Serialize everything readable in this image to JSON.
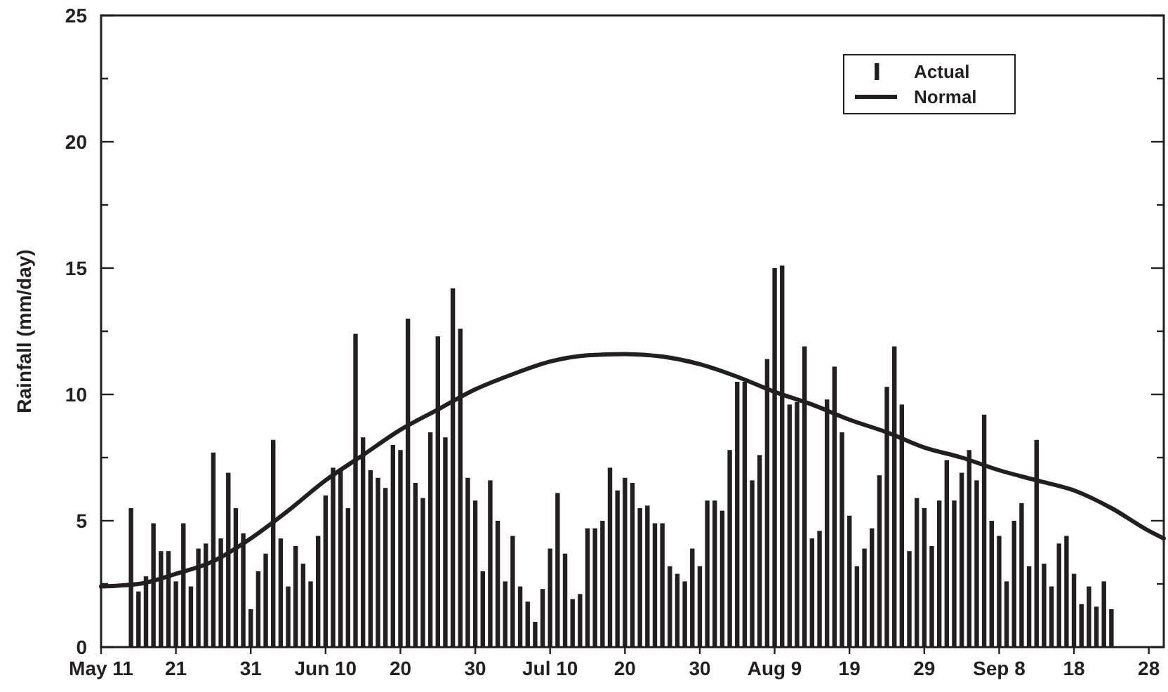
{
  "chart_data": {
    "type": "bar",
    "ylabel": "Rainfall (mm/day)",
    "x": [
      "--05-15",
      "--05-16",
      "--05-17",
      "--05-18",
      "--05-19",
      "--05-20",
      "--05-21",
      "--05-22",
      "--05-23",
      "--05-24",
      "--05-25",
      "--05-26",
      "--05-27",
      "--05-28",
      "--05-29",
      "--05-30",
      "--05-31",
      "--06-01",
      "--06-02",
      "--06-03",
      "--06-04",
      "--06-05",
      "--06-06",
      "--06-07",
      "--06-08",
      "--06-09",
      "--06-10",
      "--06-11",
      "--06-12",
      "--06-13",
      "--06-14",
      "--06-15",
      "--06-16",
      "--06-17",
      "--06-18",
      "--06-19",
      "--06-20",
      "--06-21",
      "--06-22",
      "--06-23",
      "--06-24",
      "--06-25",
      "--06-26",
      "--06-27",
      "--06-28",
      "--06-29",
      "--06-30",
      "--07-01",
      "--07-02",
      "--07-03",
      "--07-04",
      "--07-05",
      "--07-06",
      "--07-07",
      "--07-08",
      "--07-09",
      "--07-10",
      "--07-11",
      "--07-12",
      "--07-13",
      "--07-14",
      "--07-15",
      "--07-16",
      "--07-17",
      "--07-18",
      "--07-19",
      "--07-20",
      "--07-21",
      "--07-22",
      "--07-23",
      "--07-24",
      "--07-25",
      "--07-26",
      "--07-27",
      "--07-28",
      "--07-29",
      "--07-30",
      "--07-31",
      "--08-01",
      "--08-02",
      "--08-03",
      "--08-04",
      "--08-05",
      "--08-06",
      "--08-07",
      "--08-08",
      "--08-09",
      "--08-10",
      "--08-11",
      "--08-12",
      "--08-13",
      "--08-14",
      "--08-15",
      "--08-16",
      "--08-17",
      "--08-18",
      "--08-19",
      "--08-20",
      "--08-21",
      "--08-22",
      "--08-23",
      "--08-24",
      "--08-25",
      "--08-26",
      "--08-27",
      "--08-28",
      "--08-29",
      "--08-30",
      "--08-31",
      "--09-01",
      "--09-02",
      "--09-03",
      "--09-04",
      "--09-05",
      "--09-06",
      "--09-07",
      "--09-08",
      "--09-09",
      "--09-10",
      "--09-11",
      "--09-12",
      "--09-13",
      "--09-14",
      "--09-15",
      "--09-16",
      "--09-17",
      "--09-18",
      "--09-19",
      "--09-20",
      "--09-21",
      "--09-22",
      "--09-23"
    ],
    "series": [
      {
        "name": "Actual",
        "color": "#231f20",
        "values": [
          5.5,
          2.2,
          2.8,
          4.9,
          3.8,
          3.8,
          2.6,
          4.9,
          2.4,
          3.9,
          4.1,
          7.7,
          4.3,
          6.9,
          5.5,
          4.5,
          1.5,
          3.0,
          3.7,
          8.2,
          4.3,
          2.4,
          4.0,
          3.3,
          2.6,
          4.4,
          6.0,
          7.1,
          7.0,
          5.5,
          12.4,
          8.3,
          7.0,
          6.7,
          6.3,
          8.0,
          7.8,
          13.0,
          6.5,
          5.9,
          8.5,
          12.3,
          8.3,
          14.2,
          12.6,
          6.7,
          5.8,
          3.0,
          6.6,
          5.0,
          2.6,
          4.4,
          2.4,
          1.8,
          1.0,
          2.3,
          3.9,
          6.1,
          3.7,
          1.9,
          2.1,
          4.7,
          4.7,
          5.0,
          7.1,
          6.2,
          6.7,
          6.5,
          5.5,
          5.6,
          4.9,
          4.9,
          3.2,
          2.9,
          2.6,
          3.9,
          3.2,
          5.8,
          5.8,
          5.4,
          7.8,
          10.5,
          10.5,
          6.6,
          7.6,
          11.4,
          15.0,
          15.1,
          9.6,
          9.7,
          11.9,
          4.3,
          4.6,
          9.8,
          11.1,
          8.5,
          5.2,
          3.2,
          3.9,
          4.7,
          6.8,
          10.3,
          11.9,
          9.6,
          3.8,
          5.9,
          5.5,
          4.0,
          5.8,
          7.4,
          5.8,
          6.9,
          7.8,
          6.6,
          9.2,
          5.0,
          4.4,
          2.6,
          5.0,
          5.7,
          3.2,
          8.2,
          3.3,
          2.4,
          4.1,
          4.4,
          2.9,
          1.7,
          2.4,
          1.6,
          2.6,
          1.5
        ]
      },
      {
        "name": "Normal",
        "type": "line",
        "color": "#231f20",
        "x": [
          "--05-11",
          "--05-16",
          "--05-21",
          "--05-26",
          "--05-31",
          "--06-05",
          "--06-10",
          "--06-15",
          "--06-20",
          "--06-25",
          "--06-30",
          "--07-05",
          "--07-10",
          "--07-15",
          "--07-20",
          "--07-25",
          "--07-30",
          "--08-04",
          "--08-09",
          "--08-14",
          "--08-19",
          "--08-24",
          "--08-29",
          "--09-03",
          "--09-08",
          "--09-13",
          "--09-18",
          "--09-23",
          "--09-28",
          "--09-30"
        ],
        "values": [
          2.4,
          2.5,
          2.9,
          3.4,
          4.3,
          5.4,
          6.6,
          7.6,
          8.6,
          9.4,
          10.2,
          10.8,
          11.3,
          11.55,
          11.6,
          11.5,
          11.2,
          10.7,
          10.1,
          9.6,
          9.0,
          8.5,
          7.9,
          7.5,
          7.0,
          6.6,
          6.2,
          5.5,
          4.6,
          4.3
        ]
      }
    ],
    "xlim": [
      "--05-11",
      "--09-30"
    ],
    "xticks": [
      {
        "value": "--05-11",
        "label": "May 11"
      },
      {
        "value": "--05-21",
        "label": "21"
      },
      {
        "value": "--05-31",
        "label": "31"
      },
      {
        "value": "--06-10",
        "label": "Jun 10"
      },
      {
        "value": "--06-20",
        "label": "20"
      },
      {
        "value": "--06-30",
        "label": "30"
      },
      {
        "value": "--07-10",
        "label": "Jul 10"
      },
      {
        "value": "--07-20",
        "label": "20"
      },
      {
        "value": "--07-30",
        "label": "30"
      },
      {
        "value": "--08-09",
        "label": "Aug 9"
      },
      {
        "value": "--08-19",
        "label": "19"
      },
      {
        "value": "--08-29",
        "label": "29"
      },
      {
        "value": "--09-08",
        "label": "Sep 8"
      },
      {
        "value": "--09-18",
        "label": "18"
      },
      {
        "value": "--09-28",
        "label": "28"
      }
    ],
    "ylim": [
      0,
      25
    ],
    "yticks": [
      0,
      {
        "value": 2.5,
        "label": null
      },
      5,
      {
        "value": 7.5,
        "label": null
      },
      10,
      {
        "value": 12.5,
        "label": null
      },
      15,
      {
        "value": 17.5,
        "label": null
      },
      20,
      {
        "value": 22.5,
        "label": null
      },
      25
    ],
    "legend": "top right",
    "line_style": "solid"
  }
}
